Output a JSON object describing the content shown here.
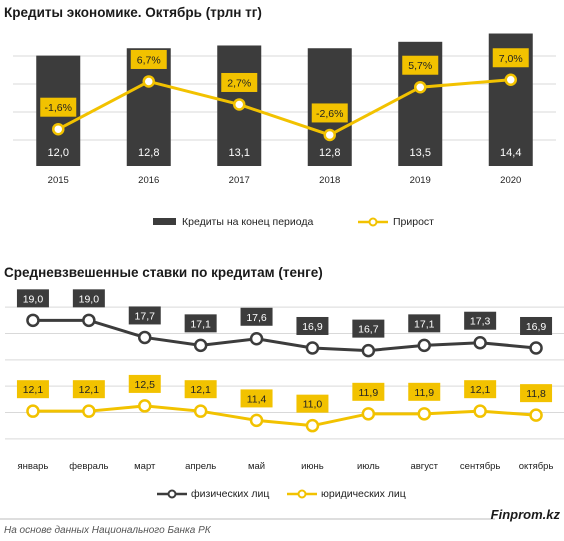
{
  "colors": {
    "dark": "#3c3c3c",
    "accent": "#f2c200",
    "label_bg": "#f2c200",
    "grid": "#d9d9d9"
  },
  "chart_data": [
    {
      "type": "bar",
      "title": "Кредиты экономике. Октябрь (трлн тг)",
      "categories": [
        "2015",
        "2016",
        "2017",
        "2018",
        "2019",
        "2020"
      ],
      "series": [
        {
          "name": "Кредиты на конец периода",
          "kind": "bar",
          "values": [
            12.0,
            12.8,
            13.1,
            12.8,
            13.5,
            14.4
          ]
        },
        {
          "name": "Прирост",
          "kind": "line",
          "values": [
            -1.6,
            6.7,
            2.7,
            -2.6,
            5.7,
            7.0
          ]
        }
      ],
      "bar_labels": [
        "12,0",
        "12,8",
        "13,1",
        "12,8",
        "13,5",
        "14,4"
      ],
      "line_labels": [
        "-1,6%",
        "6,7%",
        "2,7%",
        "-2,6%",
        "5,7%",
        "7,0%"
      ],
      "ylim": [
        0,
        15
      ],
      "ylim_line": [
        -8,
        16
      ],
      "grid": true,
      "legend_position": "bottom"
    },
    {
      "type": "line",
      "title": "Средневзвешенные ставки по кредитам (тенге)",
      "categories": [
        "январь",
        "февраль",
        "март",
        "апрель",
        "май",
        "июнь",
        "июль",
        "август",
        "сентябрь",
        "октябрь"
      ],
      "series": [
        {
          "name": "физических лиц",
          "values": [
            19.0,
            19.0,
            17.7,
            17.1,
            17.6,
            16.9,
            16.7,
            17.1,
            17.3,
            16.9
          ],
          "labels": [
            "19,0",
            "19,0",
            "17,7",
            "17,1",
            "17,6",
            "16,9",
            "16,7",
            "17,1",
            "17,3",
            "16,9"
          ]
        },
        {
          "name": "юридических лиц",
          "values": [
            12.1,
            12.1,
            12.5,
            12.1,
            11.4,
            11.0,
            11.9,
            11.9,
            12.1,
            11.8
          ],
          "labels": [
            "12,1",
            "12,1",
            "12,5",
            "12,1",
            "11,4",
            "11,0",
            "11,9",
            "11,9",
            "12,1",
            "11,8"
          ]
        }
      ],
      "ylim": [
        9,
        21
      ],
      "grid": true,
      "legend_position": "bottom"
    }
  ],
  "footer": {
    "source": "На основе данных Национального  Банка РК",
    "brand": "Finprom.kz"
  }
}
